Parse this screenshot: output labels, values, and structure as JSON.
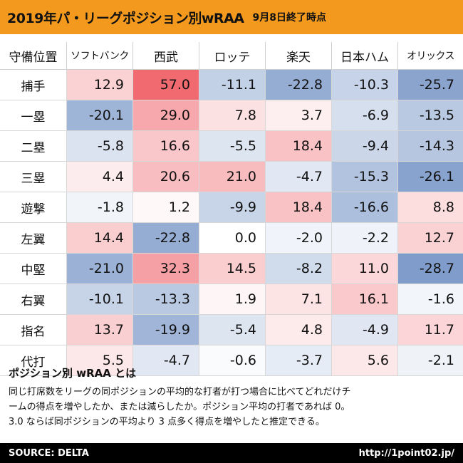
{
  "header": {
    "title": "2019年パ・リーグポジション別wRAA",
    "date": "9月8日終了時点"
  },
  "table": {
    "columns": [
      "守備位置",
      "ソフトバンク",
      "西武",
      "ロッテ",
      "楽天",
      "日本ハム",
      "オリックス"
    ],
    "rows": [
      {
        "position": "捕手",
        "values": [
          12.9,
          57.0,
          -11.1,
          -22.8,
          -10.3,
          -25.7
        ]
      },
      {
        "position": "一塁",
        "values": [
          -20.1,
          29.0,
          7.8,
          3.7,
          -6.9,
          -13.5
        ]
      },
      {
        "position": "二塁",
        "values": [
          -5.8,
          16.6,
          -5.5,
          18.4,
          -9.4,
          -14.3
        ]
      },
      {
        "position": "三塁",
        "values": [
          4.4,
          20.6,
          21.0,
          -4.7,
          -15.3,
          -26.1
        ]
      },
      {
        "position": "遊撃",
        "values": [
          -1.8,
          1.2,
          -9.9,
          18.4,
          -16.6,
          8.8
        ]
      },
      {
        "position": "左翼",
        "values": [
          14.4,
          -22.8,
          0.0,
          -2.0,
          -2.2,
          12.7
        ]
      },
      {
        "position": "中堅",
        "values": [
          -21.0,
          32.3,
          14.5,
          -8.2,
          11.0,
          -28.7
        ]
      },
      {
        "position": "右翼",
        "values": [
          -10.1,
          -13.3,
          1.9,
          7.1,
          16.1,
          -1.6
        ]
      },
      {
        "position": "指名",
        "values": [
          13.7,
          -19.9,
          -5.4,
          4.8,
          -4.9,
          11.7
        ]
      },
      {
        "position": "代打",
        "values": [
          5.5,
          -4.7,
          -0.6,
          -3.7,
          5.6,
          -2.1
        ]
      }
    ],
    "colors": {
      "positive_max": "#f06a70",
      "negative_max": "#7f9cca",
      "neutral": "#ffffff"
    }
  },
  "note": {
    "title": "ポジション別 wRAA とは",
    "lines": [
      "同じ打席数をリーグの同ポジションの平均的な打者が打つ場合に比べてどれだけチ",
      "ームの得点を増やしたか、または減らしたか。ポジション平均の打者であれば 0。",
      "3.0 ならば同ポジションの平均より 3 点多く得点を増やしたと推定できる。"
    ]
  },
  "footer": {
    "source": "SOURCE: DELTA",
    "url": "http://1point02.jp/"
  }
}
